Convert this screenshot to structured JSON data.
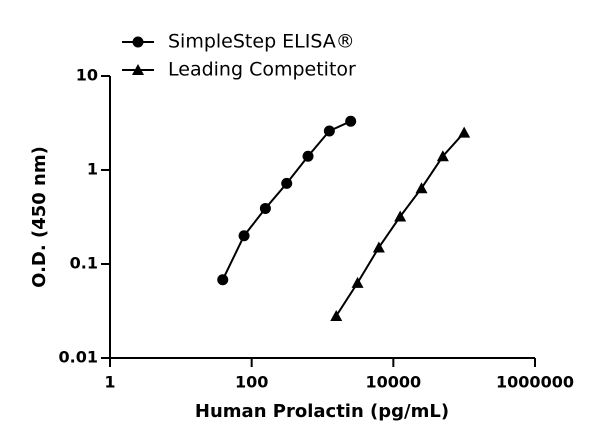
{
  "chart_data": {
    "type": "line",
    "xlabel": "Human Prolactin (pg/mL)",
    "ylabel": "O.D. (450 nm)",
    "xscale": "log",
    "yscale": "log",
    "xlim": [
      1,
      1000000
    ],
    "xticks": [
      1,
      100,
      10000,
      1000000
    ],
    "ylim": [
      0.01,
      10
    ],
    "yticks": [
      0.01,
      0.1,
      1,
      10
    ],
    "legend": "top-left",
    "series": [
      {
        "name": "SimpleStep ELISA®",
        "color": "#000000",
        "marker": "circle",
        "x": [
          39.06,
          78.13,
          156.25,
          312.5,
          625,
          1250,
          2500
        ],
        "values": [
          0.068,
          0.2,
          0.39,
          0.72,
          1.4,
          2.6,
          3.3
        ]
      },
      {
        "name": "Leading Competitor",
        "color": "#000000",
        "marker": "triangle",
        "x": [
          1563,
          3125,
          6250,
          12500,
          25000,
          50000,
          100000
        ],
        "values": [
          0.028,
          0.063,
          0.15,
          0.32,
          0.64,
          1.4,
          2.5
        ]
      }
    ]
  }
}
